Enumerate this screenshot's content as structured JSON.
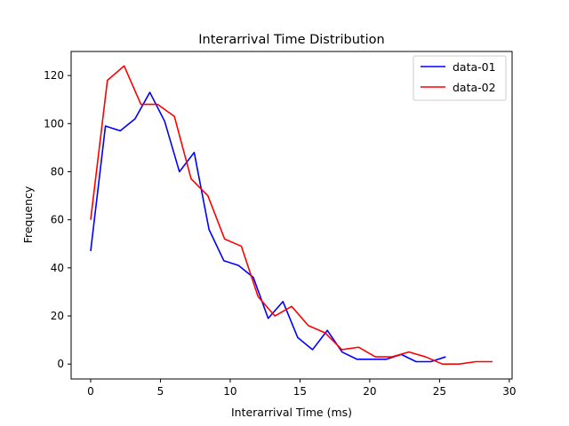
{
  "chart_data": {
    "type": "line",
    "title": "Interarrival Time Distribution",
    "xlabel": "Interarrival Time (ms)",
    "ylabel": "Frequency",
    "xlim": [
      -1.4,
      30.2
    ],
    "ylim": [
      -6.2,
      130
    ],
    "xticks": [
      0,
      5,
      10,
      15,
      20,
      25,
      30
    ],
    "yticks": [
      0,
      20,
      40,
      60,
      80,
      100,
      120
    ],
    "grid": false,
    "legend": "top-right",
    "series": [
      {
        "name": "data-01",
        "color": "#0000ff",
        "x": [
          0.0,
          1.06,
          2.12,
          3.18,
          4.24,
          5.3,
          6.36,
          7.42,
          8.48,
          9.54,
          10.6,
          11.66,
          12.72,
          13.78,
          14.84,
          15.9,
          16.96,
          18.02,
          19.08,
          20.14,
          21.2,
          22.26,
          23.32,
          24.38,
          25.44
        ],
        "values": [
          47,
          99,
          97,
          102,
          113,
          101,
          80,
          88,
          56,
          43,
          41,
          36,
          19,
          26,
          11,
          6,
          14,
          5,
          2,
          2,
          2,
          4,
          1,
          1,
          3
        ]
      },
      {
        "name": "data-02",
        "color": "#ff0000",
        "x": [
          0.0,
          1.2,
          2.4,
          3.6,
          4.8,
          6.0,
          7.2,
          8.4,
          9.6,
          10.8,
          12.0,
          13.2,
          14.4,
          15.6,
          16.8,
          18.0,
          19.2,
          20.4,
          21.6,
          22.8,
          24.0,
          25.2,
          26.4,
          27.6,
          28.8
        ],
        "values": [
          60,
          118,
          124,
          108,
          108,
          103,
          77,
          70,
          52,
          49,
          28,
          20,
          24,
          16,
          13,
          6,
          7,
          3,
          3,
          5,
          3,
          0,
          0,
          1,
          1
        ]
      }
    ]
  }
}
